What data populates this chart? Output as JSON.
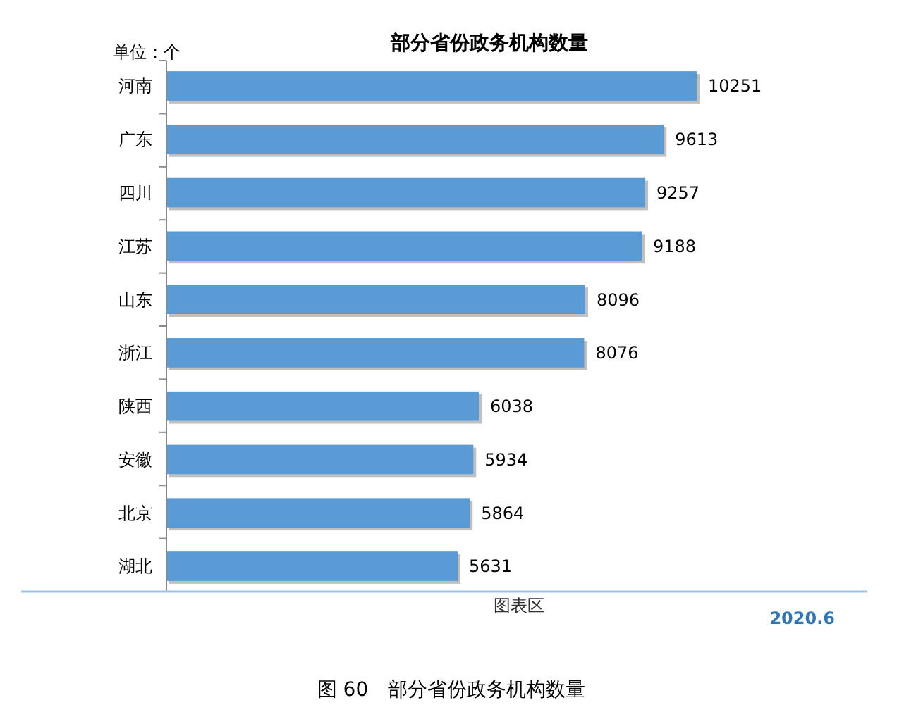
{
  "chart_data": {
    "type": "bar",
    "orientation": "horizontal",
    "title": "部分省份政务机构数量",
    "categories": [
      "河南",
      "广东",
      "四川",
      "江苏",
      "山东",
      "浙江",
      "陕西",
      "安徽",
      "北京",
      "湖北"
    ],
    "values": [
      10251,
      9613,
      9257,
      9188,
      8096,
      8076,
      6038,
      5934,
      5864,
      5631
    ],
    "color": "#5b9bd5",
    "data_labels": true,
    "annotations": [
      "单位：个",
      "2020.6",
      "图表区",
      "图 60　部分省份政务机构数量"
    ]
  }
}
